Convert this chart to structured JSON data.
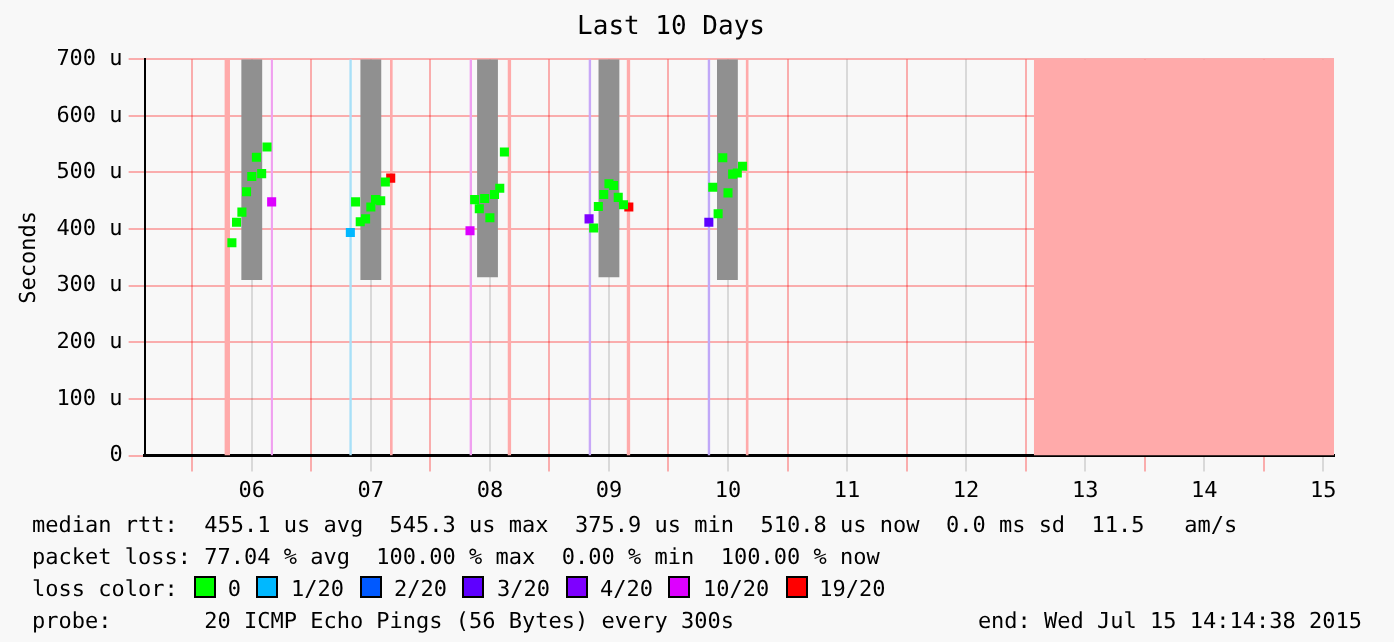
{
  "chart_data": {
    "type": "scatter",
    "title": "Last 10 Days",
    "ylabel": "Seconds",
    "legend_title": "loss color:",
    "legend": "bottom",
    "grid": true,
    "marker": "square",
    "xlim": [
      5.6,
      15.59
    ],
    "xticks": [
      {
        "value": 6,
        "label": null
      },
      {
        "value": 6.5,
        "label": "06"
      },
      {
        "value": 7,
        "label": null
      },
      {
        "value": 7.5,
        "label": "07"
      },
      {
        "value": 8,
        "label": null
      },
      {
        "value": 8.5,
        "label": "08"
      },
      {
        "value": 9,
        "label": null
      },
      {
        "value": 9.5,
        "label": "09"
      },
      {
        "value": 10,
        "label": null
      },
      {
        "value": 10.5,
        "label": "10"
      },
      {
        "value": 11,
        "label": null
      },
      {
        "value": 11.5,
        "label": "11"
      },
      {
        "value": 12,
        "label": null
      },
      {
        "value": 12.5,
        "label": "12"
      },
      {
        "value": 13,
        "label": null
      },
      {
        "value": 13.5,
        "label": "13"
      },
      {
        "value": 14,
        "label": null
      },
      {
        "value": 14.5,
        "label": "14"
      },
      {
        "value": 15,
        "label": null
      },
      {
        "value": 15.5,
        "label": "15"
      }
    ],
    "ylim": [
      0,
      700
    ],
    "yticks": [
      0,
      {
        "value": 100,
        "label": "100 u"
      },
      {
        "value": 200,
        "label": "200 u"
      },
      {
        "value": 300,
        "label": "300 u"
      },
      {
        "value": 400,
        "label": "400 u"
      },
      {
        "value": 500,
        "label": "500 u"
      },
      {
        "value": 600,
        "label": "600 u"
      },
      {
        "value": 700,
        "label": "700 u"
      }
    ],
    "series": [
      {
        "type": "bar",
        "color": "#909090",
        "x": [
          6.5,
          7.5,
          8.48,
          9.5,
          10.495
        ],
        "base": [
          310,
          310,
          315,
          315,
          310
        ],
        "values": [
          390,
          390,
          385,
          385,
          390
        ]
      },
      {
        "name": "0",
        "color": "#00ff00",
        "x": [
          6.333,
          6.372,
          6.417,
          6.456,
          6.5,
          6.539,
          6.583,
          6.628,
          7.372,
          7.411,
          7.456,
          7.5,
          7.539,
          7.583,
          7.622,
          8.372,
          8.411,
          8.456,
          8.5,
          8.539,
          8.583,
          8.622,
          9.372,
          9.411,
          9.456,
          9.5,
          9.539,
          9.578,
          9.622,
          10.372,
          10.417,
          10.456,
          10.5,
          10.539,
          10.578,
          10.622
        ],
        "values": [
          376,
          412,
          430,
          466,
          493,
          527,
          498,
          545,
          448,
          413,
          418,
          439,
          452,
          450,
          483,
          452,
          436,
          454,
          420,
          461,
          472,
          536,
          402,
          440,
          461,
          480,
          477,
          456,
          443,
          474,
          427,
          526,
          464,
          497,
          499,
          511
        ]
      },
      {
        "name": "1/20",
        "color": "#00b8ff",
        "x": [
          7.328
        ],
        "values": [
          394
        ]
      },
      {
        "name": "2/20",
        "color": "#0059ff"
      },
      {
        "name": "3/20",
        "color": "#5e00ff",
        "x": [
          10.339
        ],
        "values": [
          412
        ]
      },
      {
        "name": "4/20",
        "color": "#7e00ff",
        "x": [
          9.333
        ],
        "values": [
          418
        ]
      },
      {
        "name": "10/20",
        "color": "#dd00ff",
        "x": [
          6.667,
          8.333
        ],
        "values": [
          448,
          397
        ]
      },
      {
        "name": "19/20",
        "color": "#ff0000",
        "x": [
          7.667,
          9.667
        ],
        "values": [
          490,
          439
        ]
      }
    ],
    "bands": [
      {
        "axis": "x",
        "from": 6.272,
        "to": 6.317,
        "color": "#ffaaaa"
      },
      {
        "axis": "x",
        "from": 6.66,
        "to": 6.678,
        "color": "#f0a0f0"
      },
      {
        "axis": "x",
        "from": 7.32,
        "to": 7.34,
        "color": "#a8e0f8"
      },
      {
        "axis": "x",
        "from": 7.661,
        "to": 7.683,
        "color": "#ffaaaa"
      },
      {
        "axis": "x",
        "from": 8.33,
        "to": 8.35,
        "color": "#f0a0f0"
      },
      {
        "axis": "x",
        "from": 8.65,
        "to": 8.678,
        "color": "#ffaaaa"
      },
      {
        "axis": "x",
        "from": 9.33,
        "to": 9.35,
        "color": "#c8a8f8"
      },
      {
        "axis": "x",
        "from": 9.65,
        "to": 9.678,
        "color": "#ffaaaa"
      },
      {
        "axis": "x",
        "from": 10.33,
        "to": 10.35,
        "color": "#c0a8f8"
      },
      {
        "axis": "x",
        "from": 10.65,
        "to": 10.672,
        "color": "#ffaaaa"
      },
      {
        "axis": "x",
        "from": 13.07,
        "to": 15.59,
        "color": "#ffaaaa"
      }
    ],
    "annotations": [
      "median rtt:  455.1 us avg  545.3 us max  375.9 us min  510.8 us now  0.0 ms sd  11.5   am/s",
      "packet loss: 77.04 % avg  100.00 % max  0.00 % min  100.00 % now",
      "probe:       20 ICMP Echo Pings (56 Bytes) every 300s",
      "end: Wed Jul 15 14:14:38 2015"
    ]
  }
}
